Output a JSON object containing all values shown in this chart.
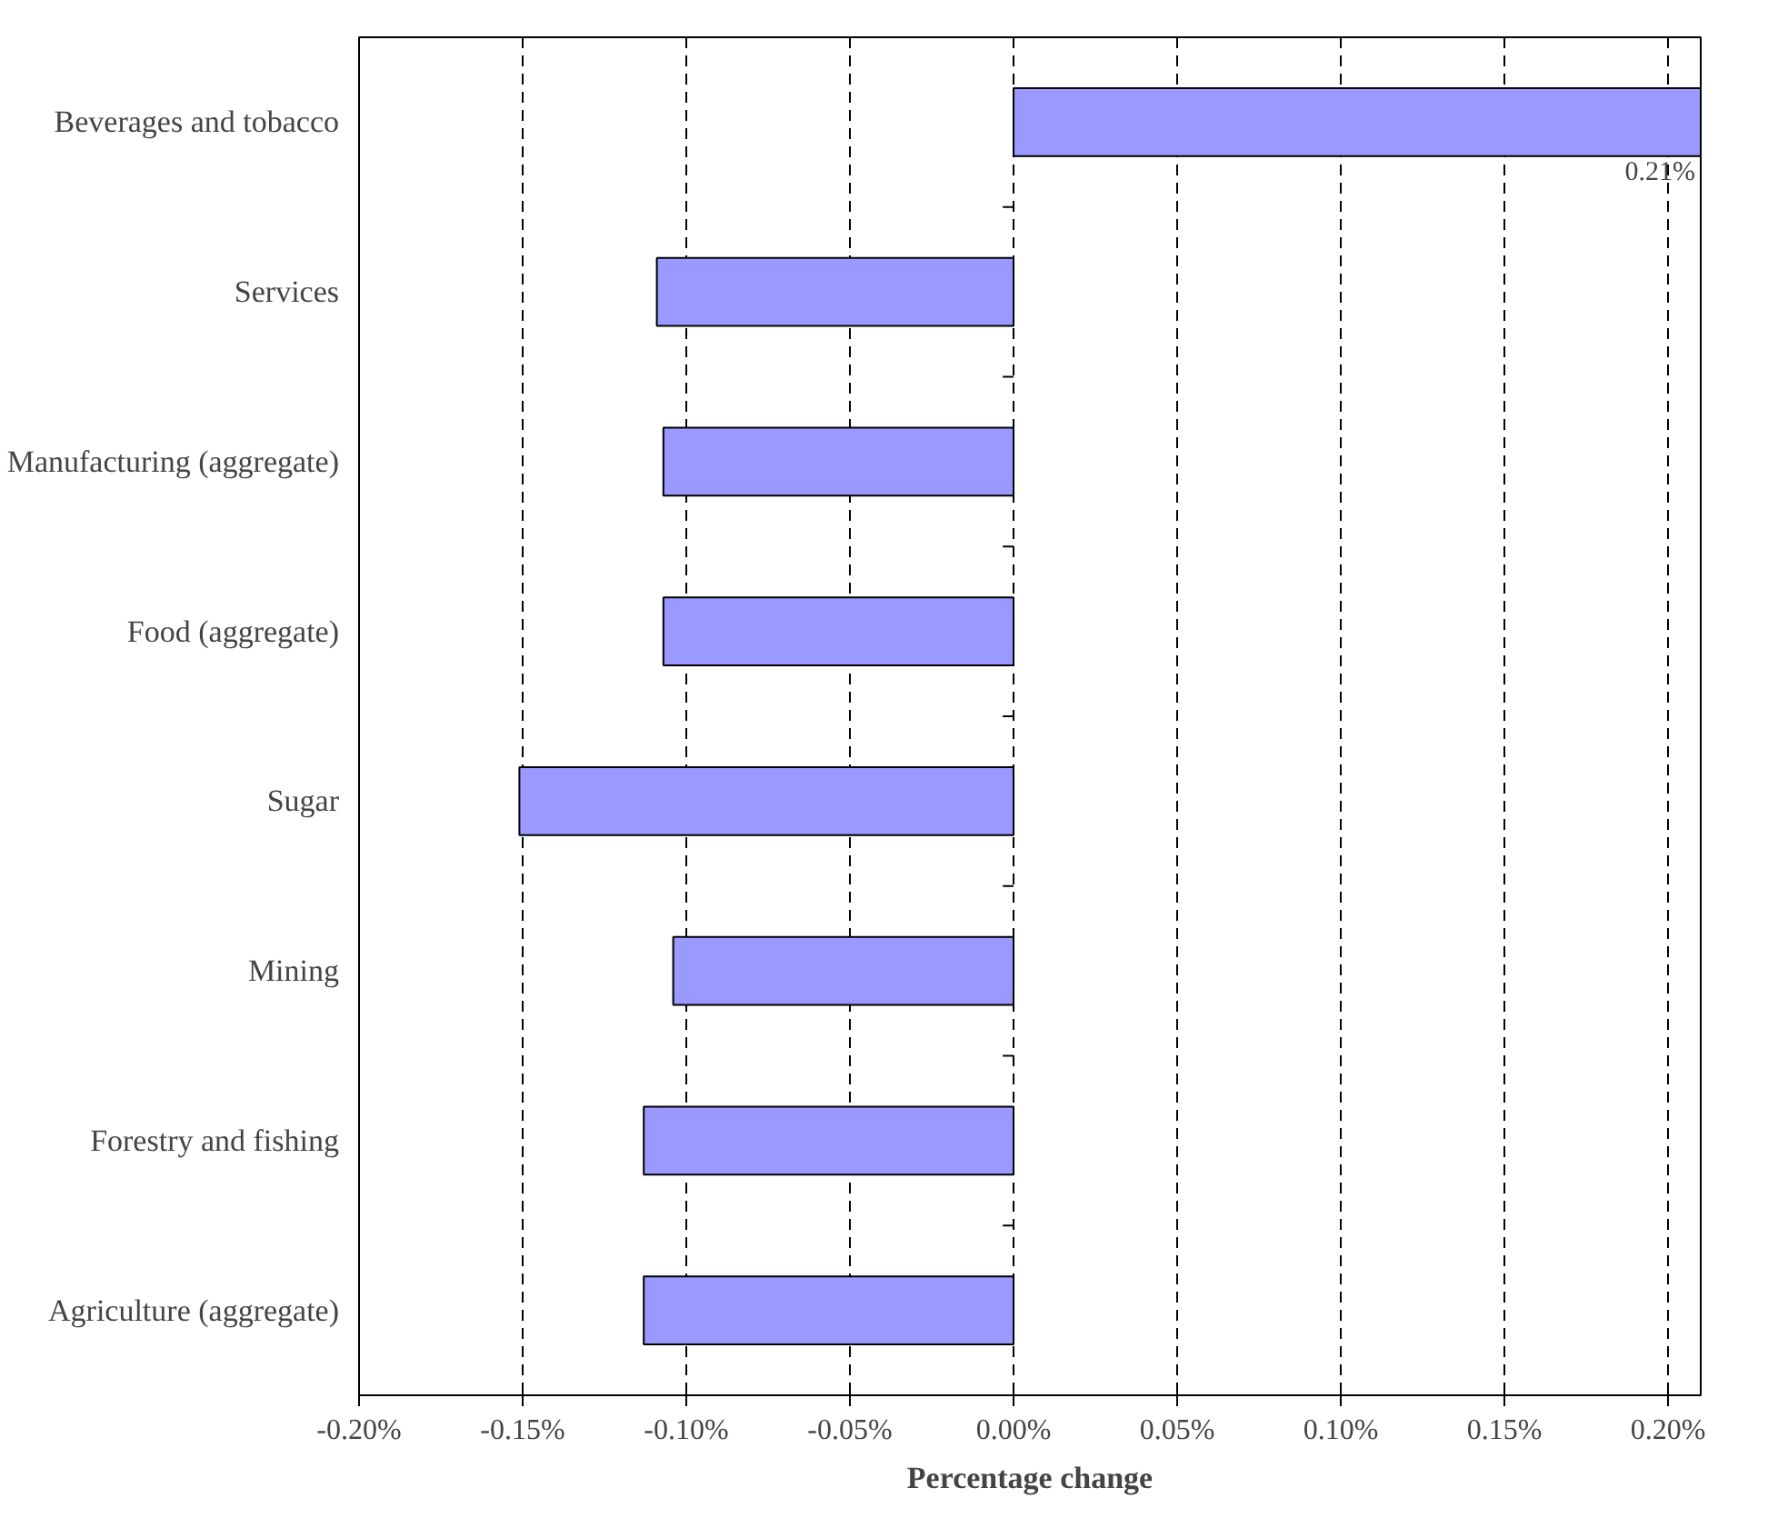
{
  "chart_data": {
    "type": "bar",
    "orientation": "horizontal",
    "xlabel": "Percentage change",
    "categories": [
      "Beverages and tobacco",
      "Services",
      "Manufacturing (aggregate)",
      "Food (aggregate)",
      "Sugar",
      "Mining",
      "Forestry and fishing",
      "Agriculture (aggregate)"
    ],
    "values": [
      0.21,
      -0.109,
      -0.107,
      -0.107,
      -0.151,
      -0.104,
      -0.113,
      -0.113
    ],
    "value_labels": [
      "0.21%",
      null,
      null,
      null,
      null,
      null,
      null,
      null
    ],
    "color": "#9999ff",
    "xlim": [
      -0.2,
      0.21
    ],
    "xticks": [
      {
        "value": -0.2,
        "label": "-0.20%"
      },
      {
        "value": -0.15,
        "label": "-0.15%"
      },
      {
        "value": -0.1,
        "label": "-0.10%"
      },
      {
        "value": -0.05,
        "label": "-0.05%"
      },
      {
        "value": 0,
        "label": "0.00%"
      },
      {
        "value": 0.05,
        "label": "0.05%"
      },
      {
        "value": 0.1,
        "label": "0.10%"
      },
      {
        "value": 0.15,
        "label": "0.15%"
      },
      {
        "value": 0.2,
        "label": "0.20%"
      }
    ],
    "grid": "x"
  }
}
